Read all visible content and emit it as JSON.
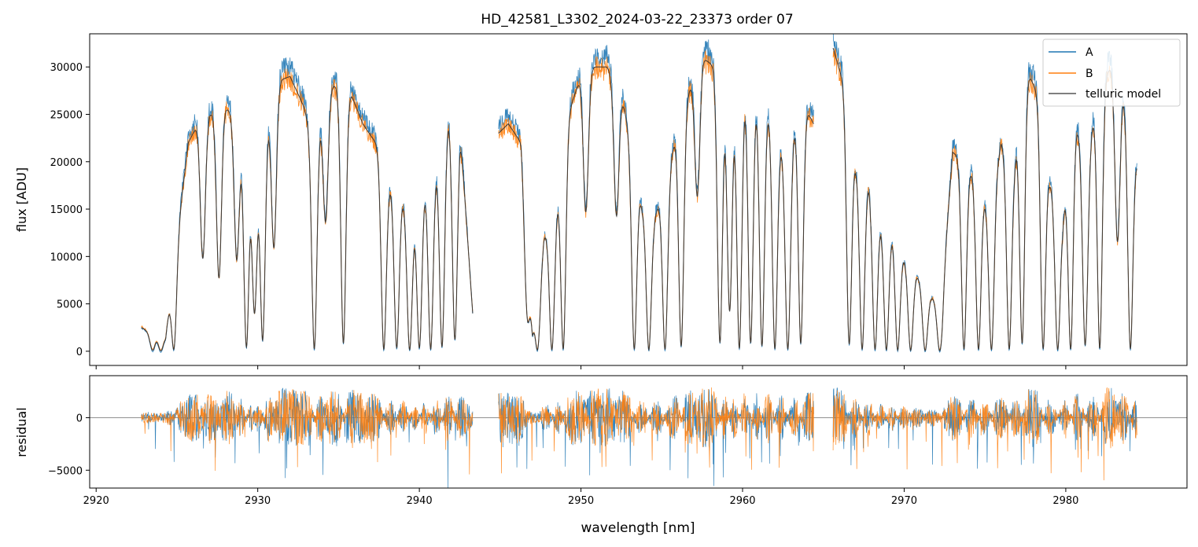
{
  "figure": {
    "title": "HD_42581_L3302_2024-03-22_23373  order 07"
  },
  "colors": {
    "A": "#1f77b4",
    "B": "#ff7f0e",
    "model": "#333333",
    "zero_line": "#808080"
  },
  "chart_data": [
    {
      "type": "line",
      "panel": "spectrum",
      "title": "HD_42581_L3302_2024-03-22_23373  order 07",
      "xlabel": "wavelength [nm]",
      "ylabel": "flux [ADU]",
      "xlim": [
        2919.6,
        2987.5
      ],
      "ylim": [
        -1500,
        33500
      ],
      "yticks": [
        0,
        5000,
        10000,
        15000,
        20000,
        25000,
        30000
      ],
      "ytick_labels": [
        "0",
        "5000",
        "10000",
        "15000",
        "20000",
        "25000",
        "30000"
      ],
      "grid": false,
      "legend": {
        "placement": "top-right",
        "entries": [
          "A",
          "B",
          "telluric model"
        ]
      },
      "segments": [
        [
          2922.8,
          2943.3
        ],
        [
          2944.9,
          2964.4
        ],
        [
          2965.6,
          2984.4
        ]
      ],
      "series": [
        {
          "name": "A",
          "color": "#1f77b4"
        },
        {
          "name": "B",
          "color": "#ff7f0e"
        },
        {
          "name": "telluric model",
          "color": "#333333"
        }
      ],
      "envelope": {
        "x": [
          2922.8,
          2923.3,
          2924.3,
          2925.0,
          2925.7,
          2926.3,
          2927.0,
          2927.8,
          2928.5,
          2929.1,
          2929.8,
          2930.5,
          2931.2,
          2932.0,
          2932.8,
          2933.5,
          2934.3,
          2935.0,
          2935.8,
          2936.5,
          2937.3,
          2938.0,
          2938.8,
          2939.5,
          2940.3,
          2941.0,
          2941.8,
          2942.5,
          2943.3,
          2944.9,
          2945.5,
          2946.3,
          2947.0,
          2947.7,
          2948.4,
          2949.2,
          2950.0,
          2950.8,
          2951.6,
          2952.4,
          2953.1,
          2953.8,
          2954.5,
          2955.3,
          2956.0,
          2956.8,
          2957.5,
          2958.3,
          2959.0,
          2959.8,
          2960.5,
          2961.3,
          2962.0,
          2962.8,
          2963.5,
          2964.4,
          2965.6,
          2966.3,
          2967.0,
          2967.8,
          2968.6,
          2969.3,
          2970.0,
          2970.8,
          2971.5,
          2972.3,
          2973.0,
          2973.8,
          2974.5,
          2975.3,
          2976.0,
          2976.8,
          2977.5,
          2978.3,
          2979.0,
          2979.8,
          2980.5,
          2981.3,
          2982.0,
          2982.8,
          2983.5,
          2984.4
        ],
        "y": [
          2500,
          2000,
          1500,
          12000,
          22000,
          24000,
          25000,
          26000,
          25000,
          22000,
          20000,
          24000,
          28500,
          29000,
          26000,
          22000,
          28000,
          28000,
          27000,
          24000,
          22000,
          18000,
          17000,
          14000,
          18000,
          20000,
          25000,
          24000,
          4000,
          23000,
          24000,
          22000,
          2000,
          12000,
          15000,
          25000,
          29000,
          30000,
          30000,
          28000,
          22000,
          15000,
          14000,
          18000,
          24000,
          28000,
          31000,
          30000,
          28000,
          28000,
          29000,
          27000,
          24000,
          20000,
          27000,
          24000,
          32000,
          28000,
          20000,
          18000,
          14000,
          13000,
          10000,
          8000,
          6000,
          5000,
          21000,
          20000,
          18000,
          15000,
          22000,
          20000,
          30000,
          27000,
          18000,
          14000,
          25000,
          20000,
          28000,
          30000,
          28000,
          20000
        ]
      },
      "absorption_lines": [
        {
          "x": 2923.5,
          "depth": 0.95
        },
        {
          "x": 2924.0,
          "depth": 0.98
        },
        {
          "x": 2924.8,
          "depth": 0.98
        },
        {
          "x": 2926.6,
          "depth": 0.6
        },
        {
          "x": 2927.6,
          "depth": 0.7
        },
        {
          "x": 2928.7,
          "depth": 0.6
        },
        {
          "x": 2929.3,
          "depth": 0.98
        },
        {
          "x": 2929.8,
          "depth": 0.8
        },
        {
          "x": 2930.3,
          "depth": 0.95
        },
        {
          "x": 2931.0,
          "depth": 0.6
        },
        {
          "x": 2933.5,
          "depth": 0.99
        },
        {
          "x": 2934.2,
          "depth": 0.5
        },
        {
          "x": 2935.3,
          "depth": 0.97
        },
        {
          "x": 2937.8,
          "depth": 0.99
        },
        {
          "x": 2938.6,
          "depth": 0.98
        },
        {
          "x": 2939.4,
          "depth": 0.99
        },
        {
          "x": 2940.0,
          "depth": 0.98
        },
        {
          "x": 2940.7,
          "depth": 0.99
        },
        {
          "x": 2941.4,
          "depth": 0.98
        },
        {
          "x": 2942.2,
          "depth": 0.95
        },
        {
          "x": 2946.7,
          "depth": 0.7
        },
        {
          "x": 2947.3,
          "depth": 0.98
        },
        {
          "x": 2948.2,
          "depth": 0.99
        },
        {
          "x": 2948.9,
          "depth": 0.99
        },
        {
          "x": 2950.3,
          "depth": 0.5
        },
        {
          "x": 2952.2,
          "depth": 0.5
        },
        {
          "x": 2953.3,
          "depth": 0.99
        },
        {
          "x": 2954.2,
          "depth": 0.99
        },
        {
          "x": 2955.2,
          "depth": 0.99
        },
        {
          "x": 2956.2,
          "depth": 0.98
        },
        {
          "x": 2957.2,
          "depth": 0.45
        },
        {
          "x": 2958.6,
          "depth": 0.97
        },
        {
          "x": 2959.2,
          "depth": 0.85
        },
        {
          "x": 2959.8,
          "depth": 0.99
        },
        {
          "x": 2960.5,
          "depth": 0.97
        },
        {
          "x": 2961.2,
          "depth": 0.98
        },
        {
          "x": 2962.0,
          "depth": 0.99
        },
        {
          "x": 2962.8,
          "depth": 0.99
        },
        {
          "x": 2963.6,
          "depth": 0.97
        },
        {
          "x": 2966.6,
          "depth": 0.97
        },
        {
          "x": 2967.4,
          "depth": 0.99
        },
        {
          "x": 2968.2,
          "depth": 0.99
        },
        {
          "x": 2968.9,
          "depth": 0.99
        },
        {
          "x": 2969.6,
          "depth": 0.99
        },
        {
          "x": 2970.4,
          "depth": 0.99
        },
        {
          "x": 2971.3,
          "depth": 0.99
        },
        {
          "x": 2972.2,
          "depth": 0.99
        },
        {
          "x": 2973.7,
          "depth": 0.99
        },
        {
          "x": 2974.6,
          "depth": 0.99
        },
        {
          "x": 2975.4,
          "depth": 0.99
        },
        {
          "x": 2976.5,
          "depth": 0.99
        },
        {
          "x": 2977.3,
          "depth": 0.97
        },
        {
          "x": 2978.6,
          "depth": 0.99
        },
        {
          "x": 2979.5,
          "depth": 0.99
        },
        {
          "x": 2980.3,
          "depth": 0.99
        },
        {
          "x": 2981.2,
          "depth": 0.97
        },
        {
          "x": 2982.1,
          "depth": 0.99
        },
        {
          "x": 2983.2,
          "depth": 0.6
        },
        {
          "x": 2984.0,
          "depth": 0.99
        }
      ]
    },
    {
      "type": "line",
      "panel": "residual",
      "xlabel": "wavelength [nm]",
      "ylabel": "residual",
      "xlim": [
        2919.6,
        2987.5
      ],
      "ylim": [
        -6700,
        4000
      ],
      "yticks": [
        -5000,
        0
      ],
      "ytick_labels": [
        "−5000",
        "0"
      ],
      "xticks": [
        2920,
        2930,
        2940,
        2950,
        2960,
        2970,
        2980
      ],
      "xtick_labels": [
        "2920",
        "2930",
        "2940",
        "2950",
        "2960",
        "2970",
        "2980"
      ],
      "reference_line": 0,
      "series": [
        {
          "name": "A",
          "color": "#1f77b4"
        },
        {
          "name": "B",
          "color": "#ff7f0e"
        }
      ]
    }
  ]
}
